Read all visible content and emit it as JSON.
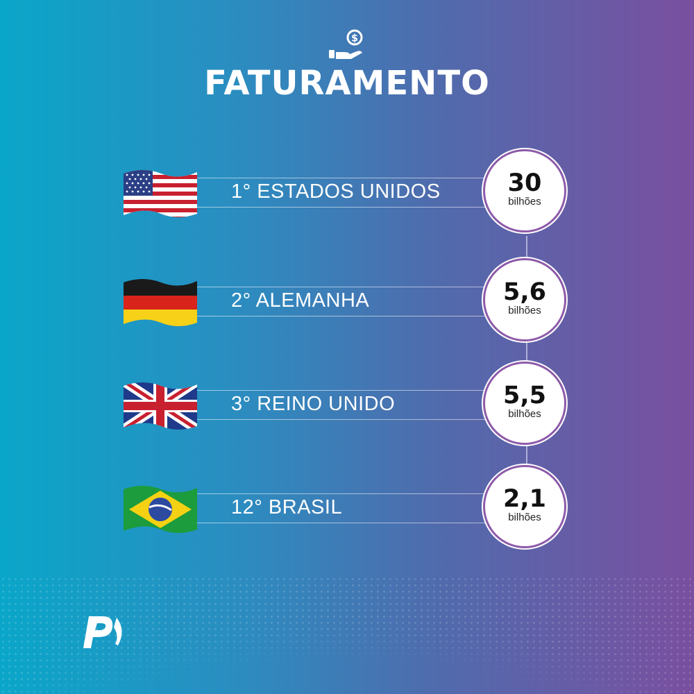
{
  "header": {
    "icon": "hand-coin-icon",
    "title": "FATURAMENTO"
  },
  "ranking": [
    {
      "flag": "usa-flag-icon",
      "label": "1° ESTADOS UNIDOS",
      "value": "30",
      "unit": "bilhões"
    },
    {
      "flag": "germany-flag-icon",
      "label": "2° ALEMANHA",
      "value": "5,6",
      "unit": "bilhões"
    },
    {
      "flag": "uk-flag-icon",
      "label": "3° REINO UNIDO",
      "value": "5,5",
      "unit": "bilhões"
    },
    {
      "flag": "brazil-flag-icon",
      "label": "12° BRASIL",
      "value": "2,1",
      "unit": "bilhões"
    }
  ],
  "footer": {
    "logo": "p-logo-icon"
  },
  "colors": {
    "accent": "#8d5aa9",
    "text": "#ffffff",
    "bg_left": "#0aa6c9",
    "bg_right": "#7a4fa0"
  }
}
